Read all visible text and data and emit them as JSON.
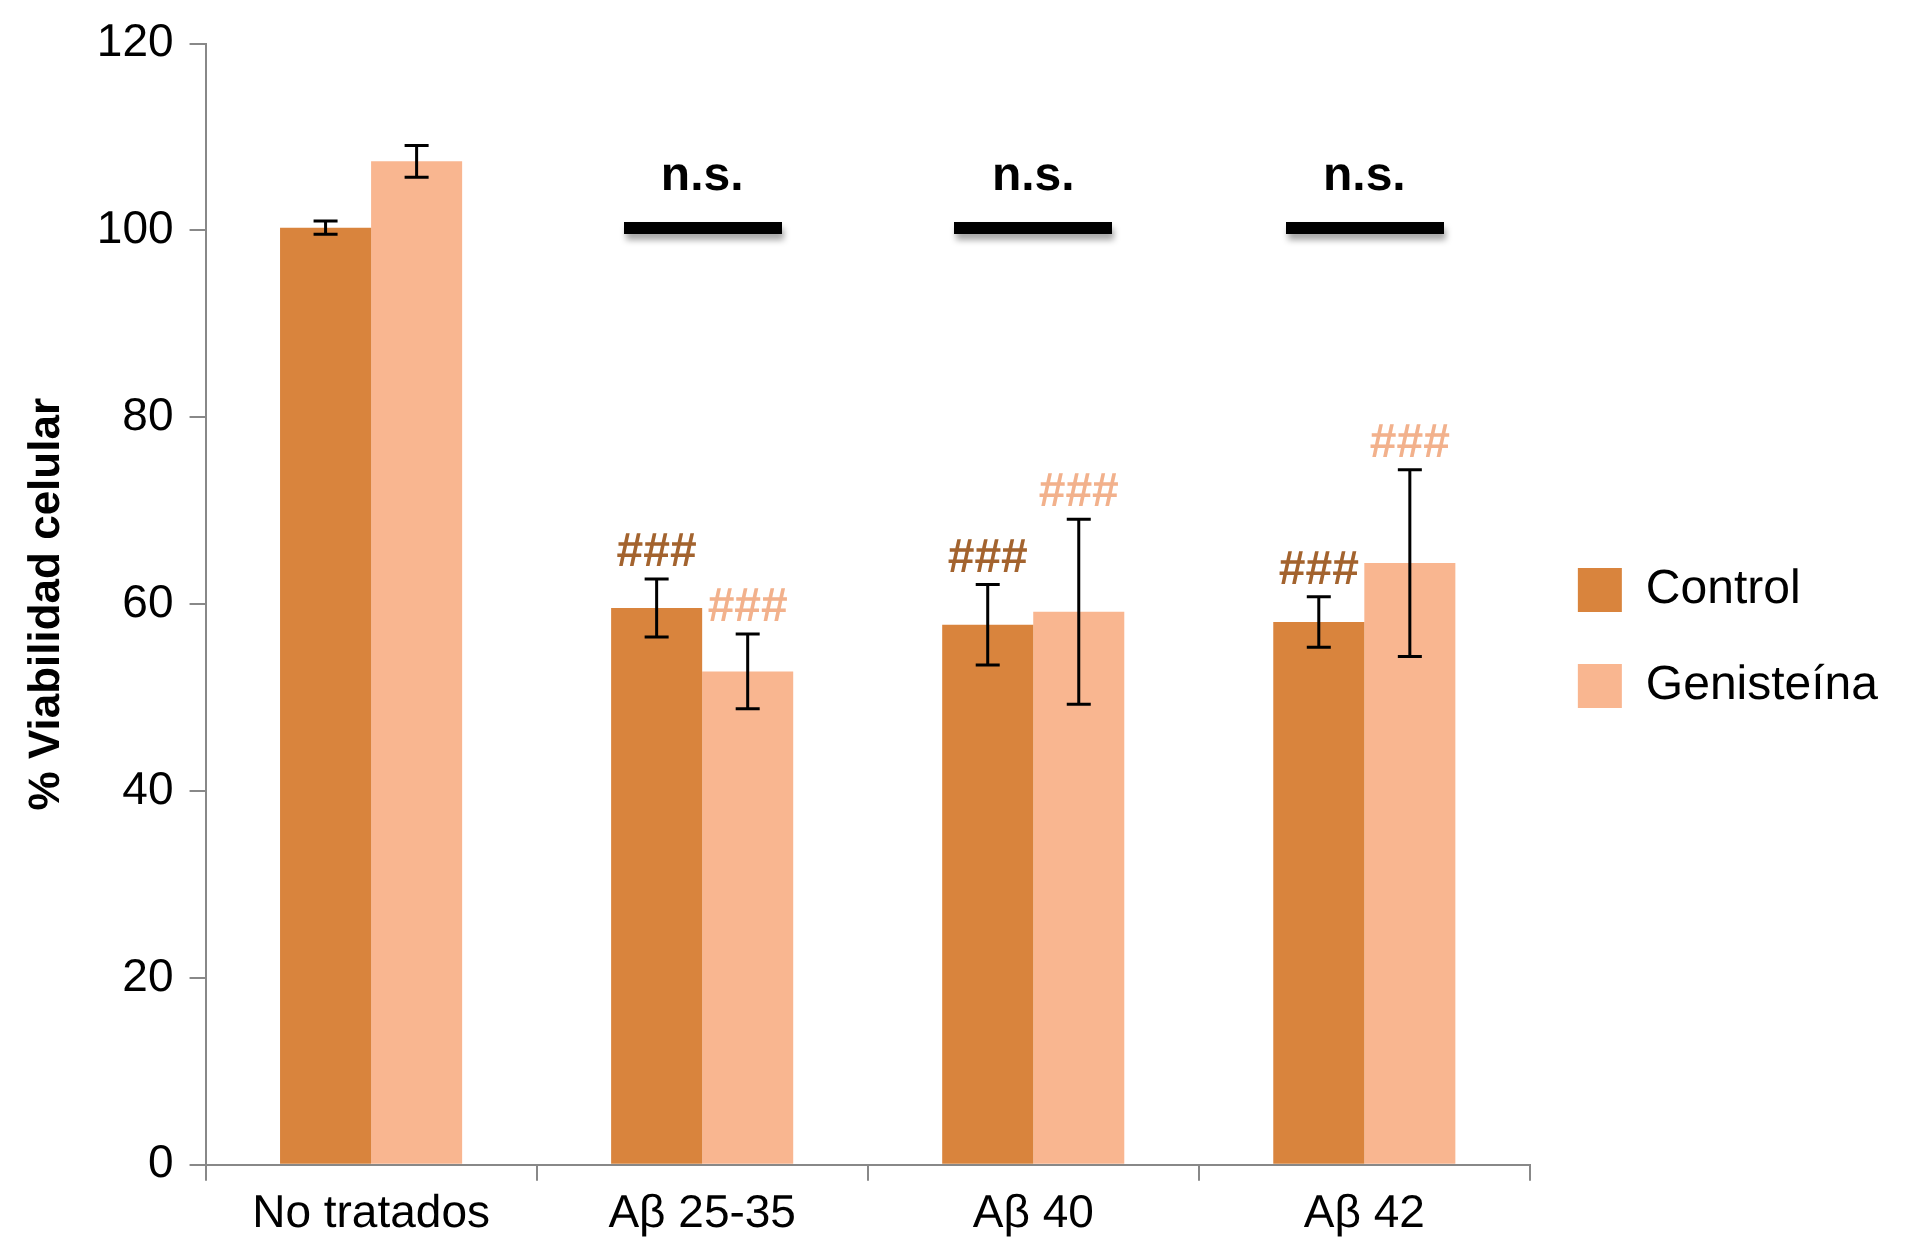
{
  "chart_data": {
    "type": "bar",
    "ylabel": "% Viabilidad celular",
    "categories": [
      "No tratados",
      "Aβ 25-35",
      "Aβ 40",
      "Aβ 42"
    ],
    "series": [
      {
        "name": "Control",
        "color": "#d9843d",
        "values": [
          100.3,
          59.6,
          57.8,
          58.1
        ],
        "errors": [
          0.7,
          3.1,
          4.3,
          2.7
        ],
        "value_labels": [
          null,
          "###",
          "###",
          "###"
        ]
      },
      {
        "name": "Genisteína",
        "color": "#f9b690",
        "values": [
          107.4,
          52.8,
          59.2,
          64.4
        ],
        "errors": [
          1.7,
          4.0,
          9.9,
          10.0
        ],
        "value_labels": [
          null,
          "###",
          "###",
          "###"
        ]
      }
    ],
    "ylim": [
      0,
      120
    ],
    "yticks": [
      0,
      20,
      40,
      60,
      80,
      100,
      120
    ],
    "grid": false,
    "legend": "right",
    "annotations": [
      "n.s.",
      "n.s.",
      "n.s."
    ]
  }
}
